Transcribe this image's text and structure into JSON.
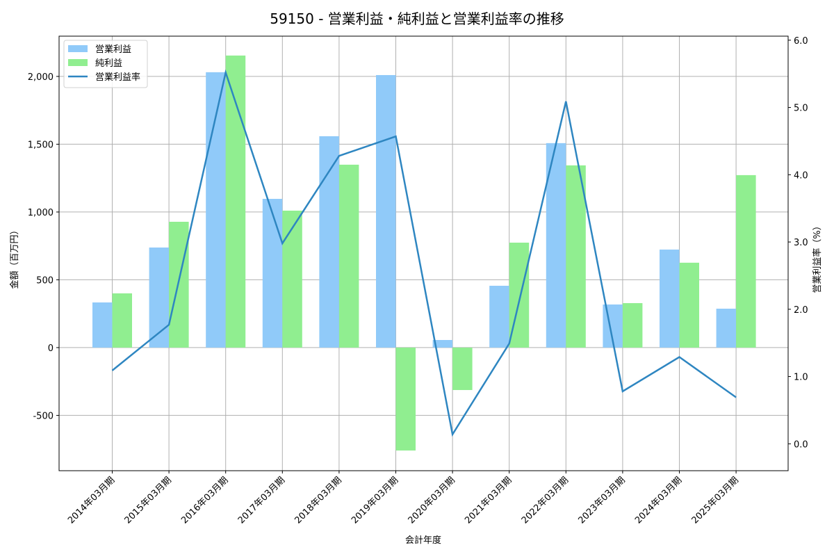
{
  "chart_data": {
    "type": "bar",
    "title": "59150 - 営業利益・純利益と営業利益率の推移",
    "xlabel": "会計年度",
    "ylabel": "金額（百万円）",
    "y2label": "営業利益率（%）",
    "ylim": [
      -908,
      2297
    ],
    "y2lim": [
      -0.4,
      6.06
    ],
    "yticks": [
      -500,
      0,
      500,
      1000,
      1500,
      2000
    ],
    "ytick_labels": [
      "-500",
      "0",
      "500",
      "1,000",
      "1,500",
      "2,000"
    ],
    "y2ticks": [
      0,
      1,
      2,
      3,
      4,
      5,
      6
    ],
    "y2tick_labels": [
      "0.0",
      "1.0",
      "2.0",
      "3.0",
      "4.0",
      "5.0",
      "6.0"
    ],
    "grid": true,
    "legend": "top-left",
    "categories": [
      "2014年03月期",
      "2015年03月期",
      "2016年03月期",
      "2017年03月期",
      "2018年03月期",
      "2019年03月期",
      "2020年03月期",
      "2021年03月期",
      "2022年03月期",
      "2023年03月期",
      "2024年03月期",
      "2025年03月期"
    ],
    "series": [
      {
        "name": "営業利益",
        "type": "bar",
        "color": "#90caf9",
        "values": [
          333,
          738,
          2031,
          1097,
          1559,
          2010,
          56,
          456,
          1508,
          318,
          723,
          287
        ]
      },
      {
        "name": "純利益",
        "type": "bar",
        "color": "#90ee90",
        "values": [
          400,
          928,
          2154,
          1010,
          1349,
          -759,
          -313,
          774,
          1344,
          328,
          626,
          1272
        ]
      },
      {
        "name": "営業利益率",
        "type": "line",
        "axis": "right",
        "color": "#2e86c1",
        "values": [
          1.09,
          1.77,
          5.52,
          2.98,
          4.28,
          4.57,
          0.14,
          1.49,
          5.09,
          0.78,
          1.29,
          0.69
        ]
      }
    ]
  }
}
